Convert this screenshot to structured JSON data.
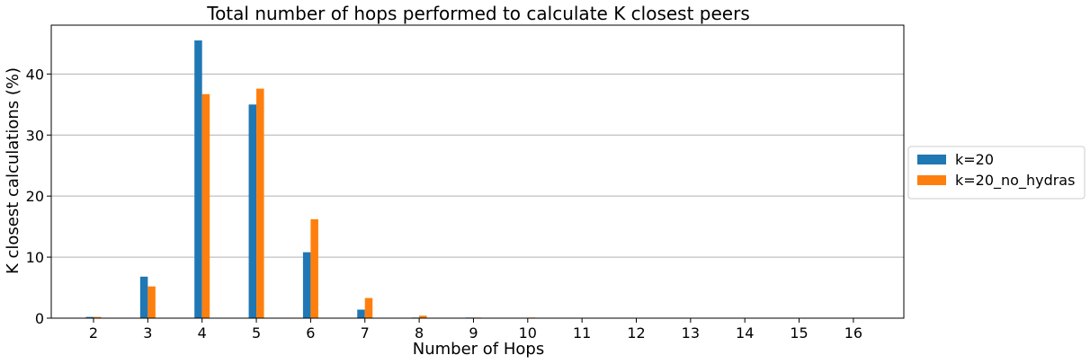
{
  "chart_data": {
    "type": "bar",
    "title": "Total number of hops performed to calculate K closest peers",
    "xlabel": "Number of Hops",
    "ylabel": "K closest calculations (%)",
    "categories": [
      "2",
      "3",
      "4",
      "5",
      "6",
      "7",
      "8",
      "9",
      "10",
      "11",
      "12",
      "13",
      "14",
      "15",
      "16"
    ],
    "ylim": [
      0,
      48
    ],
    "yticks": [
      0,
      10,
      20,
      30,
      40
    ],
    "grid": "y",
    "legend_position": "right",
    "series": [
      {
        "name": "k=20",
        "color": "#1f77b4",
        "values": [
          0.2,
          6.8,
          45.5,
          35.0,
          10.8,
          1.4,
          0.1,
          0.1,
          0,
          0,
          0,
          0,
          0,
          0,
          0
        ]
      },
      {
        "name": "k=20_no_hydras",
        "color": "#ff7f0e",
        "values": [
          0.2,
          5.2,
          36.7,
          37.6,
          16.2,
          3.3,
          0.4,
          0.1,
          0.1,
          0,
          0,
          0,
          0,
          0,
          0
        ]
      }
    ]
  }
}
